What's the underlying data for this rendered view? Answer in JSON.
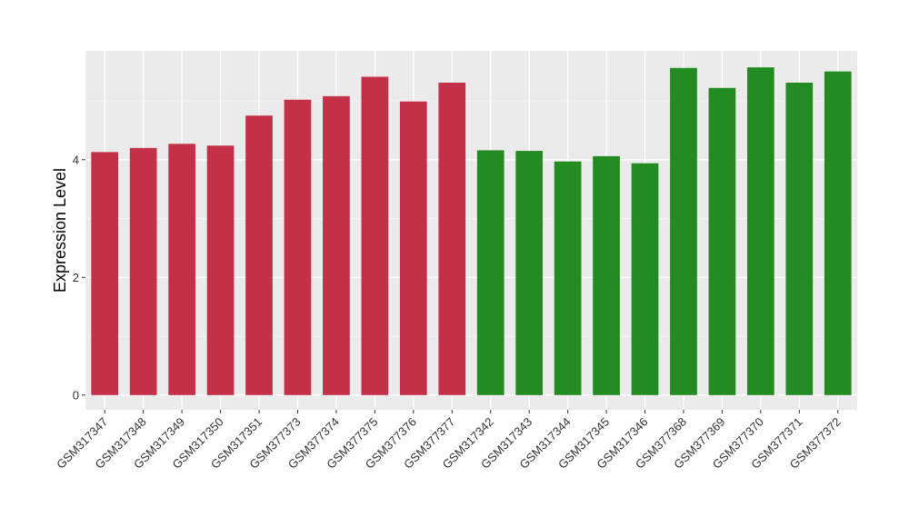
{
  "chart_data": {
    "type": "bar",
    "ylabel": "Expression Level",
    "xlabel": "",
    "ylim": [
      -0.25,
      5.85
    ],
    "yticks": [
      0,
      2,
      4
    ],
    "grid": true,
    "panel_background": "#ebebeb",
    "categories": [
      "GSM317347",
      "GSM317348",
      "GSM317349",
      "GSM317350",
      "GSM317351",
      "GSM377373",
      "GSM377374",
      "GSM377375",
      "GSM377376",
      "GSM377377",
      "GSM317342",
      "GSM317343",
      "GSM317344",
      "GSM317345",
      "GSM317346",
      "GSM377368",
      "GSM377369",
      "GSM377370",
      "GSM377371",
      "GSM377372"
    ],
    "values": [
      4.13,
      4.2,
      4.27,
      4.24,
      4.75,
      5.02,
      5.08,
      5.41,
      4.99,
      5.31,
      4.16,
      4.15,
      3.97,
      4.06,
      3.94,
      5.56,
      5.22,
      5.57,
      5.31,
      5.5
    ],
    "colors": [
      "#c43048",
      "#c43048",
      "#c43048",
      "#c43048",
      "#c43048",
      "#c43048",
      "#c43048",
      "#c43048",
      "#c43048",
      "#c43048",
      "#228b22",
      "#228b22",
      "#228b22",
      "#228b22",
      "#228b22",
      "#228b22",
      "#228b22",
      "#228b22",
      "#228b22",
      "#228b22"
    ]
  }
}
